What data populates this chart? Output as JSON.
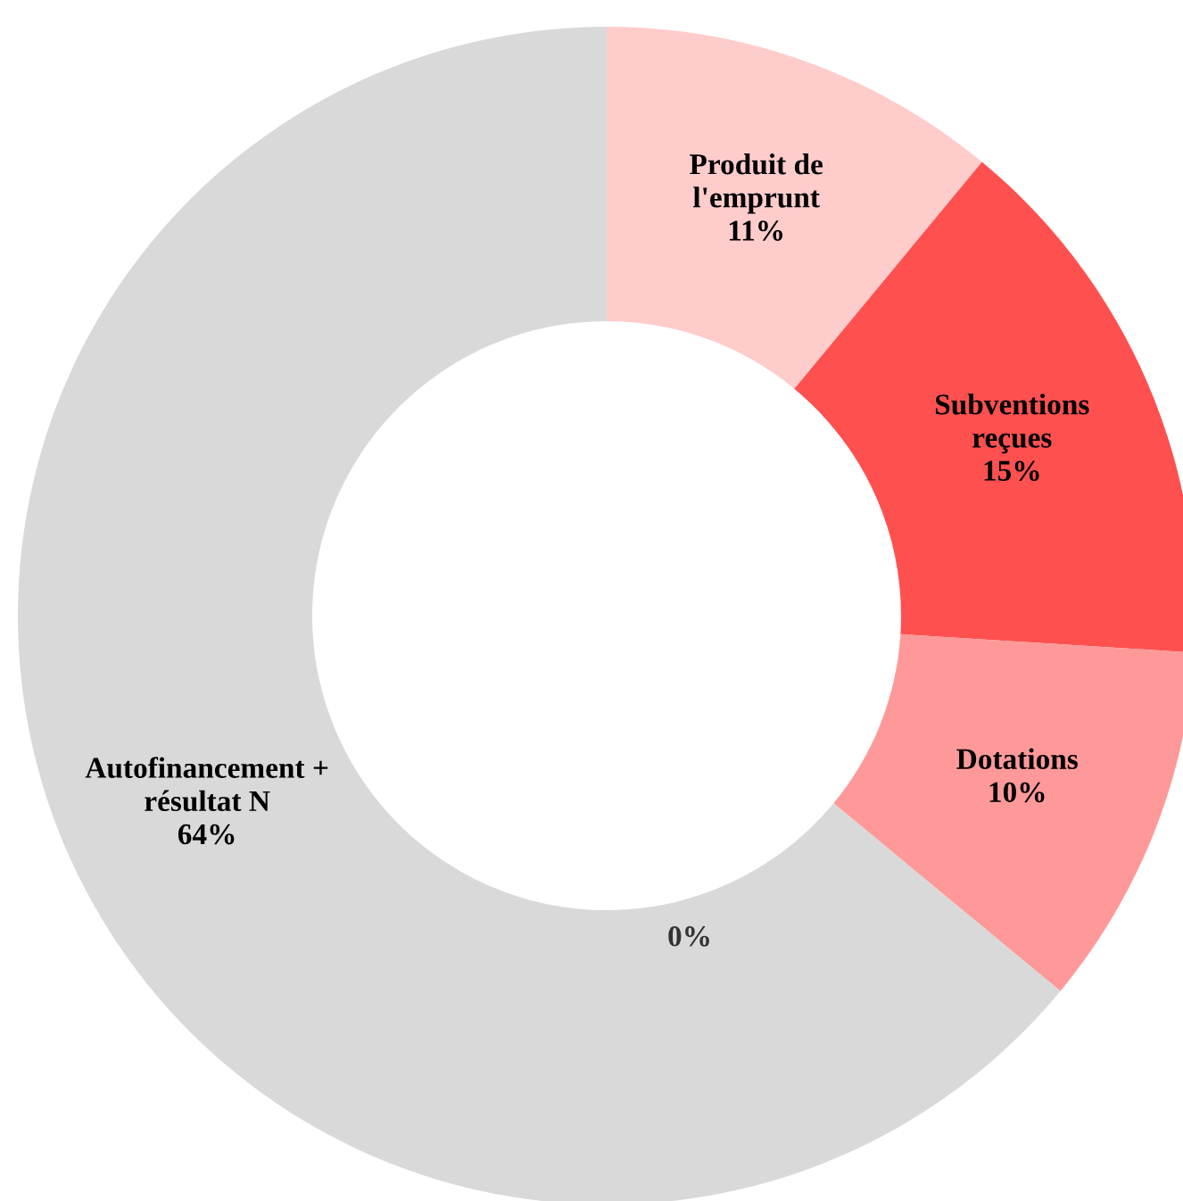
{
  "chart_data": {
    "type": "donut",
    "categories": [
      "Produit de\nl'emprunt",
      "Subventions\nreçues",
      "Dotations",
      null,
      "Autofinancement +\nrésultat N"
    ],
    "values": [
      11,
      15,
      10,
      0,
      64
    ],
    "value_labels": [
      "11%",
      "15%",
      "10%",
      "0%",
      "64%"
    ],
    "colors": [
      "#ffcccc",
      "#ff5050",
      "#ff9999",
      "#d9d9d9",
      "#d9d9d9"
    ],
    "legend": false
  }
}
